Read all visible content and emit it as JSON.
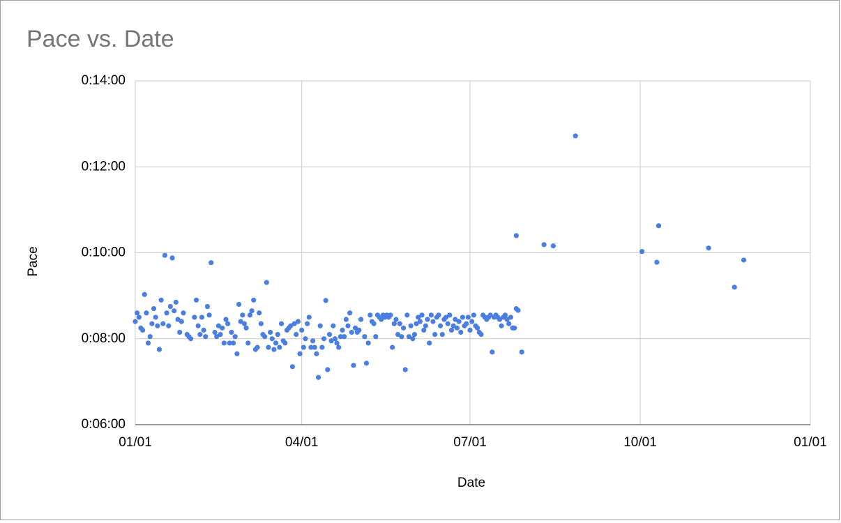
{
  "chart_data": {
    "type": "scatter",
    "title": "Pace vs. Date",
    "x_label": "Date",
    "y_label": "Pace",
    "color": "#4a7ee0",
    "grid": true,
    "xlim": [
      0,
      365
    ],
    "xticks": [
      {
        "value": 0,
        "label": "01/01"
      },
      {
        "value": 90,
        "label": "04/01"
      },
      {
        "value": 181,
        "label": "07/01"
      },
      {
        "value": 273,
        "label": "10/01"
      },
      {
        "value": 365,
        "label": "01/01"
      }
    ],
    "ylim": [
      6,
      14
    ],
    "yticks": [
      {
        "value": 6,
        "label": "0:06:00"
      },
      {
        "value": 8,
        "label": "0:08:00"
      },
      {
        "value": 10,
        "label": "0:10:00"
      },
      {
        "value": 12,
        "label": "0:12:00"
      },
      {
        "value": 14,
        "label": "0:14:00"
      }
    ],
    "x": [
      0,
      1,
      2,
      3,
      4,
      6,
      7,
      8,
      9,
      10,
      11,
      12,
      13,
      14,
      15,
      17,
      18,
      19,
      21,
      22,
      23,
      24,
      25,
      26,
      28,
      29,
      30,
      32,
      33,
      34,
      35,
      36,
      37,
      38,
      39,
      40,
      43,
      44,
      45,
      46,
      47,
      48,
      49,
      50,
      51,
      52,
      53,
      54,
      55,
      56,
      57,
      58,
      59,
      60,
      61,
      62,
      63,
      64,
      65,
      66,
      67,
      68,
      69,
      70,
      72,
      73,
      74,
      75,
      76,
      77,
      78,
      79,
      80,
      81,
      82,
      83,
      84,
      86,
      87,
      88,
      89,
      90,
      91,
      92,
      93,
      94,
      95,
      96,
      97,
      98,
      100,
      101,
      102,
      105,
      106,
      107,
      108,
      109,
      110,
      111,
      112,
      113,
      114,
      115,
      116,
      117,
      119,
      120,
      121,
      122,
      124,
      126,
      127,
      128,
      129,
      130,
      131,
      132,
      133,
      134,
      135,
      136,
      137,
      138,
      139,
      140,
      141,
      142,
      143,
      144,
      145,
      147,
      148,
      149,
      150,
      151,
      152,
      153,
      154,
      155,
      156,
      157,
      158,
      159,
      160,
      161,
      162,
      163,
      164,
      165,
      166,
      167,
      168,
      169,
      170,
      171,
      172,
      173,
      174,
      175,
      176,
      177,
      178,
      179,
      180,
      181,
      182,
      183,
      184,
      185,
      186,
      187,
      188,
      189,
      190,
      191,
      192,
      194,
      195,
      196,
      197,
      198,
      199,
      200,
      201,
      202,
      203,
      204,
      205,
      206,
      16,
      20,
      41,
      71,
      5,
      103,
      85,
      99,
      104,
      118,
      125,
      146,
      206,
      209,
      193,
      221,
      226,
      238,
      274,
      282,
      283,
      310,
      324,
      329,
      207
    ],
    "values": [
      8.4,
      8.6,
      8.5,
      8.25,
      8.2,
      8.6,
      7.9,
      8.05,
      8.35,
      8.7,
      8.5,
      8.3,
      7.75,
      8.9,
      8.35,
      8.6,
      8.3,
      8.75,
      8.65,
      8.85,
      8.45,
      8.15,
      8.4,
      8.6,
      8.1,
      8.05,
      8.0,
      8.5,
      8.9,
      8.3,
      8.1,
      8.5,
      8.2,
      8.05,
      8.75,
      8.55,
      8.15,
      8.05,
      8.3,
      8.1,
      8.25,
      7.9,
      8.45,
      8.35,
      7.9,
      8.15,
      7.9,
      8.05,
      7.65,
      8.8,
      8.4,
      8.55,
      8.35,
      8.25,
      7.9,
      8.55,
      8.65,
      8.9,
      7.75,
      7.8,
      8.6,
      8.35,
      8.1,
      8.05,
      7.8,
      8.15,
      8.0,
      7.75,
      7.9,
      8.1,
      7.8,
      8.35,
      7.95,
      7.9,
      8.2,
      8.25,
      8.3,
      8.35,
      8.1,
      8.4,
      7.65,
      8.2,
      7.8,
      8.0,
      8.35,
      8.5,
      7.8,
      7.95,
      7.8,
      7.65,
      8.3,
      7.8,
      8.0,
      8.1,
      7.95,
      8.3,
      8.0,
      7.9,
      7.8,
      8.05,
      8.2,
      8.05,
      8.45,
      8.3,
      8.6,
      8.15,
      8.25,
      8.15,
      8.2,
      8.45,
      8.05,
      7.9,
      8.55,
      8.4,
      8.35,
      8.05,
      8.55,
      8.5,
      8.45,
      8.55,
      8.5,
      8.55,
      8.5,
      8.55,
      7.8,
      8.35,
      8.45,
      8.1,
      8.35,
      8.05,
      8.25,
      8.55,
      8.05,
      8.3,
      8.0,
      8.1,
      8.35,
      8.5,
      8.4,
      8.55,
      8.2,
      8.3,
      8.45,
      7.9,
      8.55,
      8.4,
      8.1,
      8.5,
      8.55,
      8.3,
      8.1,
      8.45,
      8.5,
      8.35,
      8.55,
      8.2,
      8.3,
      8.45,
      8.25,
      8.4,
      8.15,
      8.5,
      8.3,
      8.35,
      8.5,
      8.2,
      8.4,
      8.55,
      8.3,
      8.25,
      8.15,
      8.1,
      8.55,
      8.5,
      8.45,
      8.5,
      8.55,
      8.5,
      8.55,
      8.5,
      8.45,
      8.3,
      8.5,
      8.55,
      8.45,
      8.35,
      8.5,
      8.25,
      8.25,
      8.7,
      9.94,
      9.88,
      9.77,
      9.31,
      9.03,
      8.89,
      7.35,
      7.1,
      7.28,
      7.38,
      7.43,
      7.28,
      10.4,
      7.69,
      7.69,
      10.19,
      10.16,
      12.72,
      10.03,
      9.78,
      10.63,
      10.11,
      9.2,
      9.83,
      8.66
    ]
  }
}
